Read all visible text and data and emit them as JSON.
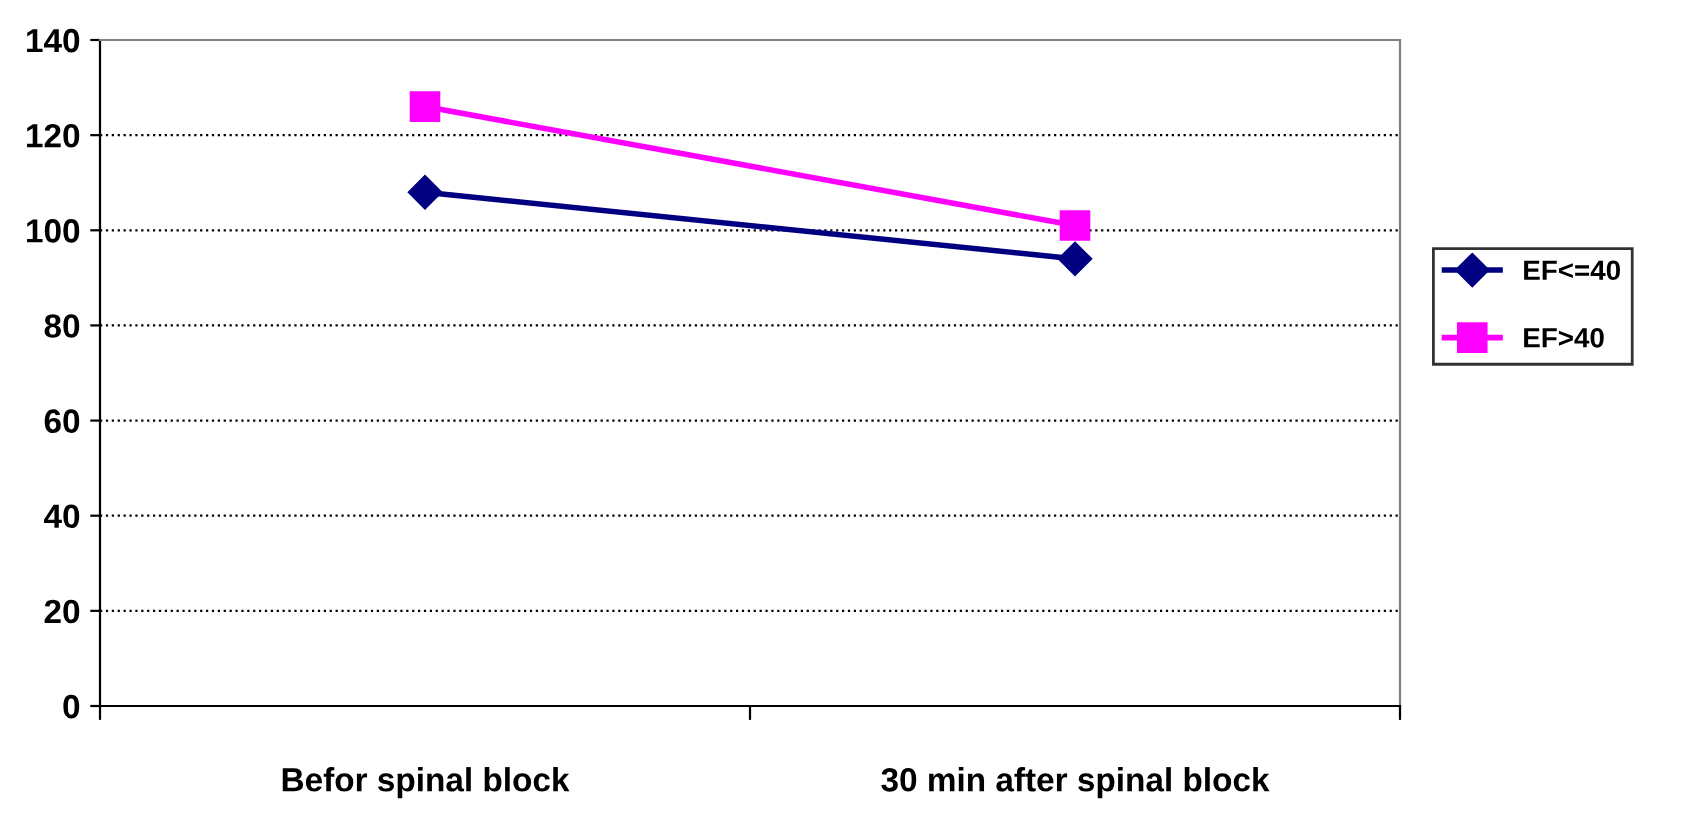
{
  "chart_data": {
    "type": "line",
    "categories": [
      "Befor spinal block",
      "30 min after spinal block"
    ],
    "series": [
      {
        "name": "EF<=40",
        "color": "#000080",
        "values": [
          108,
          94
        ],
        "marker": "diamond"
      },
      {
        "name": "EF>40",
        "color": "#ff00ff",
        "values": [
          126,
          101
        ],
        "marker": "square"
      }
    ],
    "ylim": [
      0,
      140
    ],
    "yticks": [
      0,
      20,
      40,
      60,
      80,
      100,
      120,
      140
    ],
    "grid": "y",
    "legend": "right",
    "line_style": "solid"
  }
}
